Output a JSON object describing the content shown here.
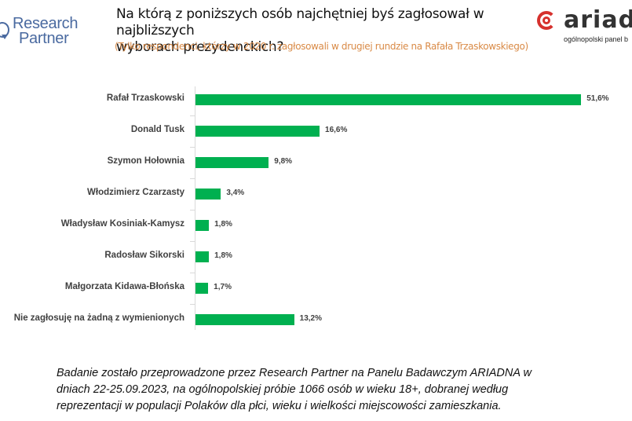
{
  "header": {
    "left_logo": {
      "line1": "Research",
      "line2": "Partner"
    },
    "title_line1": "Na którą z poniższych osób najchętniej byś zagłosował w najbliższych",
    "title_line2": "wyborach prezydenckich?",
    "subtitle": "(Tylko respondenci, którzy w 2020 r. zagłosowali w drugiej rundzie na Rafała Trzaskowskiego)",
    "right_logo": {
      "word": "ariad",
      "tagline": "ogólnopolski panel b"
    }
  },
  "colors": {
    "bar": "#00b050",
    "subtitle": "#d98a46",
    "label": "#404040",
    "logo_rp": "#4a6aa0",
    "logo_ar": "#d6312d"
  },
  "chart_data": {
    "type": "bar",
    "orientation": "horizontal",
    "title": "Na którą z poniższych osób najchętniej byś zagłosował w najbliższych wyborach prezydenckich?",
    "subtitle": "(Tylko respondenci, którzy w 2020 r. zagłosowali w drugiej rundzie na Rafała Trzaskowskiego)",
    "categories": [
      "Rafał Trzaskowski",
      "Donald Tusk",
      "Szymon Hołownia",
      "Włodzimierz Czarzasty",
      "Władysław Kosiniak-Kamysz",
      "Radosław Sikorski",
      "Małgorzata Kidawa-Błońska",
      "Nie zagłosuję na żadną z wymienionych"
    ],
    "values": [
      51.6,
      16.6,
      9.8,
      3.4,
      1.8,
      1.8,
      1.7,
      13.2
    ],
    "value_labels": [
      "51,6%",
      "16,6%",
      "9,8%",
      "3,4%",
      "1,8%",
      "1,8%",
      "1,7%",
      "13,2%"
    ],
    "unit": "%",
    "xlabel": "",
    "ylabel": "",
    "grid": false,
    "legend": null
  },
  "rows": [
    {
      "label": "Rafał Trzaskowski",
      "value": 51.6,
      "text": "51,6%"
    },
    {
      "label": "Donald Tusk",
      "value": 16.6,
      "text": "16,6%"
    },
    {
      "label": "Szymon Hołownia",
      "value": 9.8,
      "text": "9,8%"
    },
    {
      "label": "Włodzimierz Czarzasty",
      "value": 3.4,
      "text": "3,4%"
    },
    {
      "label": "Władysław Kosiniak-Kamysz",
      "value": 1.8,
      "text": "1,8%"
    },
    {
      "label": "Radosław Sikorski",
      "value": 1.8,
      "text": "1,8%"
    },
    {
      "label": "Małgorzata Kidawa-Błońska",
      "value": 1.7,
      "text": "1,7%"
    },
    {
      "label": "Nie zagłosuję na żadną z wymienionych",
      "value": 13.2,
      "text": "13,2%"
    }
  ],
  "footnote": {
    "line1": "Badanie zostało przeprowadzone przez Research Partner na Panelu Badawczym ARIADNA w",
    "line2": "dniach 22-25.09.2023, na ogólnopolskiej próbie 1066 osób w wieku 18+, dobranej według",
    "line3": "reprezentacji w populacji Polaków dla płci, wieku i wielkości miejscowości zamieszkania."
  }
}
